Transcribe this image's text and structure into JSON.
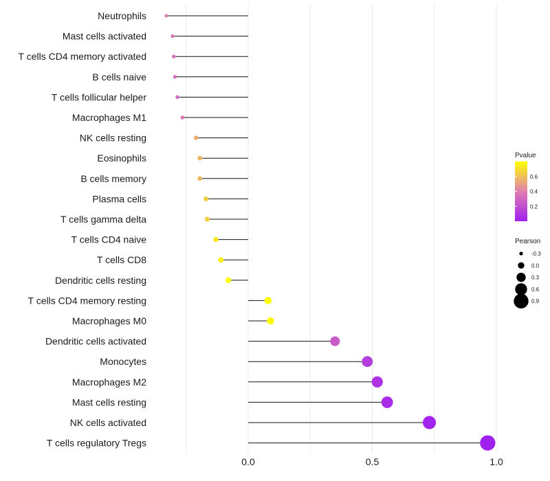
{
  "chart_data": {
    "type": "lollipop",
    "title": "",
    "xlabel": "",
    "ylabel": "",
    "xlim": [
      -0.4,
      1.0
    ],
    "x_ticks": [
      0.0,
      0.5,
      1.0
    ],
    "x_tick_labels": [
      "0.0",
      "0.5",
      "1.0"
    ],
    "grid": true,
    "categories": [
      "Neutrophils",
      "Mast cells activated",
      "T cells CD4 memory activated",
      "B cells naive",
      "T cells follicular helper",
      "Macrophages M1",
      "NK cells resting",
      "Eosinophils",
      "B cells memory",
      "Plasma cells",
      "T cells gamma delta",
      "T cells CD4 naive",
      "T cells CD8",
      "Dendritic cells resting",
      "T cells CD4 memory resting",
      "Macrophages M0",
      "Dendritic cells activated",
      "Monocytes",
      "Macrophages M2",
      "Mast cells resting",
      "NK cells activated",
      "T cells regulatory  Tregs"
    ],
    "pearson": [
      -0.33,
      -0.305,
      -0.3,
      -0.295,
      -0.285,
      -0.265,
      -0.21,
      -0.195,
      -0.195,
      -0.17,
      -0.165,
      -0.13,
      -0.11,
      -0.08,
      0.08,
      0.09,
      0.35,
      0.48,
      0.52,
      0.56,
      0.73,
      0.965
    ],
    "pvalue": [
      0.38,
      0.35,
      0.34,
      0.33,
      0.31,
      0.38,
      0.55,
      0.58,
      0.58,
      0.64,
      0.65,
      0.72,
      0.76,
      0.8,
      0.8,
      0.79,
      0.25,
      0.12,
      0.08,
      0.05,
      0.01,
      0.0
    ],
    "legend_color": {
      "title": "Pvalue",
      "ticks": [
        0.2,
        0.4,
        0.6
      ],
      "tick_labels": [
        "0.2",
        "0.4",
        "0.6"
      ],
      "range": [
        0.0,
        0.8
      ],
      "low_color": "#a020f0",
      "mid_color": "#e07fb0",
      "high_color": "#ffff00",
      "position": "right"
    },
    "legend_size": {
      "title": "Pearson",
      "values": [
        -0.3,
        0.0,
        0.3,
        0.6,
        0.9
      ],
      "labels": [
        "-0.3",
        "0.0",
        "0.3",
        "0.6",
        "0.9"
      ],
      "position": "right"
    }
  }
}
